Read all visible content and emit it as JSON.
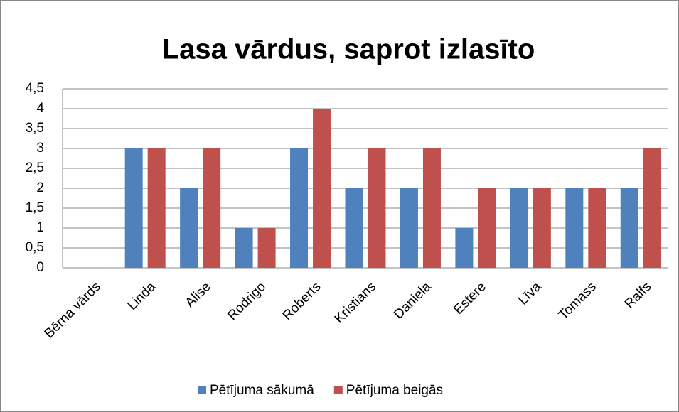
{
  "chart_data": {
    "type": "bar",
    "title": "Lasa vārdus, saprot izlasīto",
    "categories": [
      "Bērna vārds",
      "Linda",
      "Alise",
      "Rodrigo",
      "Roberts",
      "Kristians",
      "Daniela",
      "Estere",
      "Līva",
      "Tomass",
      "Ralfs"
    ],
    "series": [
      {
        "name": "Pētījuma sākumā",
        "color": "#4f81bd",
        "values": [
          null,
          3,
          2,
          1,
          3,
          2,
          2,
          1,
          2,
          2,
          2
        ]
      },
      {
        "name": "Pētījuma beigās",
        "color": "#c0504d",
        "values": [
          null,
          3,
          3,
          1,
          4,
          3,
          3,
          2,
          2,
          2,
          3
        ]
      }
    ],
    "ylim": [
      0,
      4.5
    ],
    "yticks": [
      0,
      {
        "value": 0.5,
        "label": "0,5"
      },
      1,
      {
        "value": 1.5,
        "label": "1,5"
      },
      2,
      {
        "value": 2.5,
        "label": "2,5"
      },
      3,
      {
        "value": 3.5,
        "label": "3,5"
      },
      4,
      {
        "value": 4.5,
        "label": "4,5"
      }
    ],
    "grid": true,
    "legend": "bottom"
  }
}
